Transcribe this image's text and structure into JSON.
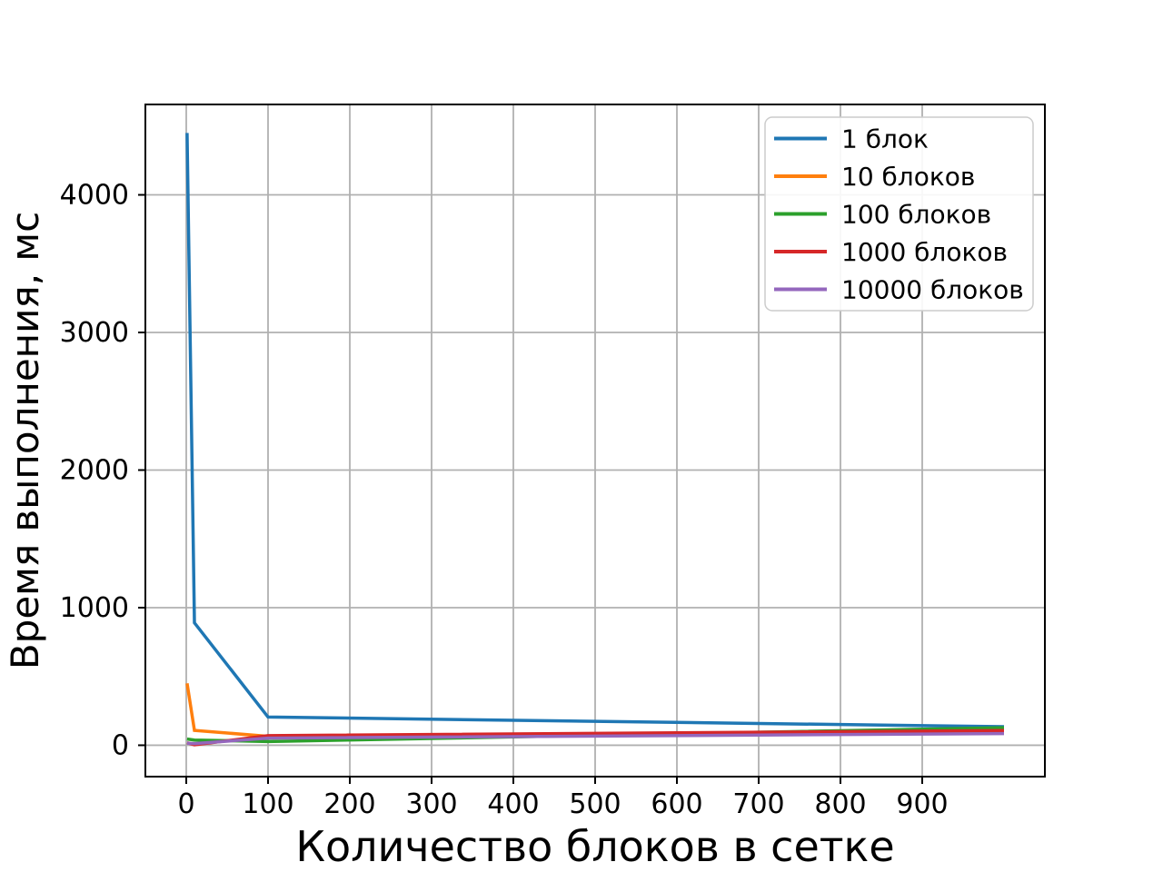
{
  "chart_data": {
    "type": "line",
    "x": [
      1,
      10,
      100,
      1000
    ],
    "series": [
      {
        "name": "1 блок",
        "color": "#1f77b4",
        "values": [
          4450,
          890,
          205,
          135
        ]
      },
      {
        "name": "10 блоков",
        "color": "#ff7f0e",
        "values": [
          450,
          108,
          65,
          100
        ]
      },
      {
        "name": "100 блоков",
        "color": "#2ca02c",
        "values": [
          45,
          38,
          27,
          128
        ]
      },
      {
        "name": "1000 блоков",
        "color": "#d62728",
        "values": [
          18,
          3,
          70,
          107
        ]
      },
      {
        "name": "10000 блоков",
        "color": "#9467bd",
        "values": [
          15,
          12,
          52,
          85
        ]
      }
    ],
    "title": "",
    "xlabel": "Количество блоков в сетке",
    "ylabel": "Время выполнения, мс",
    "xticks": [
      0,
      100,
      200,
      300,
      400,
      500,
      600,
      700,
      800,
      900
    ],
    "yticks": [
      0,
      1000,
      2000,
      3000,
      4000
    ],
    "xlim": [
      -50,
      1050
    ],
    "ylim": [
      -228,
      4657
    ],
    "grid": true,
    "grid_color": "#b0b0b0",
    "spine_color": "#000000",
    "background": "#ffffff",
    "legend_position": "upper right"
  }
}
